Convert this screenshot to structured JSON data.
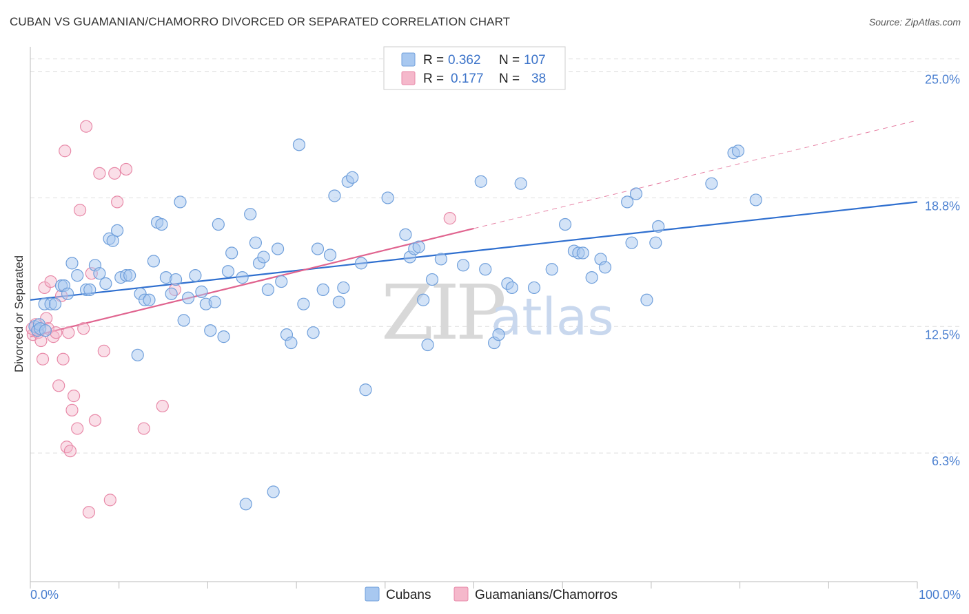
{
  "header": {
    "title": "CUBAN VS GUAMANIAN/CHAMORRO DIVORCED OR SEPARATED CORRELATION CHART",
    "source": "Source: ZipAtlas.com"
  },
  "watermark": {
    "part1": "ZIP",
    "part2": "atlas"
  },
  "legend_top": {
    "rows": [
      {
        "r_label": "R =",
        "r_value": "0.362",
        "n_label": "N =",
        "n_value": "107",
        "color": "#a8c8f0"
      },
      {
        "r_label": "R =",
        "r_value": "0.177",
        "n_label": "N =",
        "n_value": "38",
        "color": "#f5b8cb"
      }
    ]
  },
  "legend_bottom": {
    "items": [
      "Cubans",
      "Guamanians/Chamorros"
    ]
  },
  "colors": {
    "blue_fill": "#a8c8f0",
    "blue_stroke": "#6f9fdb",
    "blue_line": "#2f6fcf",
    "pink_fill": "#f5b8cb",
    "pink_stroke": "#e889a8",
    "pink_line": "#e0648f",
    "tick_text": "#4a7fd0",
    "grid": "#dddddd"
  },
  "chart_data": {
    "type": "scatter",
    "title": "CUBAN VS GUAMANIAN/CHAMORRO DIVORCED OR SEPARATED CORRELATION CHART",
    "xlabel": "",
    "ylabel": "Divorced or Separated",
    "xlim": [
      0,
      100
    ],
    "ylim": [
      0,
      26.2
    ],
    "x_tick_labels": [
      "0.0%",
      "100.0%"
    ],
    "y_ticks": [
      6.3,
      12.5,
      18.8,
      25.0
    ],
    "y_tick_labels": [
      "6.3%",
      "12.5%",
      "18.8%",
      "25.0%"
    ],
    "grid": true,
    "legend_position": "top-center",
    "series": [
      {
        "name": "Cubans",
        "r": 0.362,
        "n": 107,
        "trend": {
          "x": [
            0,
            100
          ],
          "y": [
            13.8,
            18.6
          ]
        },
        "points": [
          [
            0.5,
            12.5
          ],
          [
            0.8,
            12.3
          ],
          [
            1.0,
            12.6
          ],
          [
            1.1,
            12.4
          ],
          [
            1.6,
            13.6
          ],
          [
            1.7,
            12.3
          ],
          [
            2.3,
            13.6
          ],
          [
            2.8,
            13.6
          ],
          [
            3.5,
            14.5
          ],
          [
            3.8,
            14.5
          ],
          [
            4.2,
            14.1
          ],
          [
            4.7,
            15.6
          ],
          [
            5.3,
            15.0
          ],
          [
            6.3,
            14.3
          ],
          [
            6.7,
            14.3
          ],
          [
            7.3,
            15.5
          ],
          [
            7.8,
            15.1
          ],
          [
            8.5,
            14.6
          ],
          [
            8.9,
            16.8
          ],
          [
            9.3,
            16.7
          ],
          [
            9.8,
            17.2
          ],
          [
            10.2,
            14.9
          ],
          [
            10.8,
            15.0
          ],
          [
            11.2,
            15.0
          ],
          [
            12.1,
            11.1
          ],
          [
            12.4,
            14.1
          ],
          [
            12.9,
            13.8
          ],
          [
            13.4,
            13.8
          ],
          [
            13.9,
            15.7
          ],
          [
            14.3,
            17.6
          ],
          [
            14.8,
            17.5
          ],
          [
            15.3,
            14.9
          ],
          [
            15.9,
            14.1
          ],
          [
            16.4,
            14.8
          ],
          [
            16.9,
            18.6
          ],
          [
            17.3,
            12.8
          ],
          [
            17.8,
            13.9
          ],
          [
            18.6,
            15.0
          ],
          [
            19.3,
            14.2
          ],
          [
            19.8,
            13.6
          ],
          [
            20.3,
            12.3
          ],
          [
            20.8,
            13.7
          ],
          [
            21.2,
            17.5
          ],
          [
            21.8,
            12.0
          ],
          [
            22.3,
            15.2
          ],
          [
            22.7,
            16.1
          ],
          [
            23.9,
            14.9
          ],
          [
            24.3,
            3.8
          ],
          [
            24.8,
            18.0
          ],
          [
            25.4,
            16.6
          ],
          [
            25.8,
            15.6
          ],
          [
            26.3,
            15.9
          ],
          [
            26.8,
            14.3
          ],
          [
            27.4,
            4.4
          ],
          [
            27.9,
            16.3
          ],
          [
            28.3,
            14.7
          ],
          [
            28.9,
            12.1
          ],
          [
            29.4,
            11.7
          ],
          [
            30.3,
            21.4
          ],
          [
            30.8,
            13.6
          ],
          [
            31.9,
            12.2
          ],
          [
            32.4,
            16.3
          ],
          [
            33.0,
            14.3
          ],
          [
            33.8,
            16.0
          ],
          [
            34.3,
            18.9
          ],
          [
            34.8,
            13.7
          ],
          [
            35.3,
            14.4
          ],
          [
            35.8,
            19.6
          ],
          [
            36.3,
            19.8
          ],
          [
            37.3,
            15.6
          ],
          [
            37.8,
            9.4
          ],
          [
            40.3,
            18.8
          ],
          [
            42.3,
            17.0
          ],
          [
            42.8,
            15.9
          ],
          [
            43.3,
            16.3
          ],
          [
            43.8,
            16.4
          ],
          [
            44.3,
            13.8
          ],
          [
            44.8,
            11.6
          ],
          [
            45.3,
            14.8
          ],
          [
            46.3,
            15.8
          ],
          [
            48.8,
            15.5
          ],
          [
            50.8,
            19.6
          ],
          [
            51.3,
            15.3
          ],
          [
            52.3,
            11.7
          ],
          [
            52.8,
            12.1
          ],
          [
            53.8,
            14.6
          ],
          [
            54.3,
            14.4
          ],
          [
            55.3,
            19.5
          ],
          [
            56.8,
            14.4
          ],
          [
            58.8,
            15.3
          ],
          [
            60.3,
            17.5
          ],
          [
            61.3,
            16.2
          ],
          [
            61.8,
            16.1
          ],
          [
            62.3,
            16.1
          ],
          [
            63.3,
            14.9
          ],
          [
            64.3,
            15.8
          ],
          [
            64.8,
            15.4
          ],
          [
            67.3,
            18.6
          ],
          [
            67.8,
            16.6
          ],
          [
            68.3,
            19.0
          ],
          [
            69.5,
            13.8
          ],
          [
            70.5,
            16.6
          ],
          [
            70.8,
            17.4
          ],
          [
            76.8,
            19.5
          ],
          [
            79.3,
            21.0
          ],
          [
            79.8,
            21.1
          ],
          [
            81.8,
            18.7
          ]
        ]
      },
      {
        "name": "Guamanians/Chamorros",
        "r": 0.177,
        "n": 38,
        "trend": {
          "x": [
            0,
            50
          ],
          "y": [
            12.0,
            17.3
          ],
          "extended_to": [
            100,
            22.6
          ]
        },
        "points": [
          [
            0.3,
            12.1
          ],
          [
            0.6,
            12.6
          ],
          [
            0.9,
            12.2
          ],
          [
            1.2,
            11.8
          ],
          [
            1.4,
            10.9
          ],
          [
            1.6,
            14.4
          ],
          [
            1.8,
            12.9
          ],
          [
            2.0,
            12.4
          ],
          [
            2.3,
            14.7
          ],
          [
            2.6,
            12.0
          ],
          [
            2.9,
            12.2
          ],
          [
            3.2,
            9.6
          ],
          [
            3.5,
            14.0
          ],
          [
            3.7,
            10.9
          ],
          [
            3.9,
            21.1
          ],
          [
            4.1,
            6.6
          ],
          [
            4.3,
            12.2
          ],
          [
            4.5,
            6.4
          ],
          [
            4.7,
            8.4
          ],
          [
            4.9,
            9.1
          ],
          [
            5.3,
            7.5
          ],
          [
            5.6,
            18.2
          ],
          [
            6.0,
            12.4
          ],
          [
            6.3,
            22.3
          ],
          [
            6.6,
            3.4
          ],
          [
            6.9,
            15.1
          ],
          [
            7.3,
            7.9
          ],
          [
            7.8,
            20.0
          ],
          [
            8.3,
            11.3
          ],
          [
            9.0,
            4.0
          ],
          [
            9.5,
            20.0
          ],
          [
            9.8,
            18.6
          ],
          [
            10.8,
            20.2
          ],
          [
            12.8,
            7.5
          ],
          [
            14.9,
            8.6
          ],
          [
            16.3,
            14.3
          ],
          [
            47.3,
            17.8
          ],
          [
            0.2,
            12.4
          ]
        ]
      }
    ]
  }
}
